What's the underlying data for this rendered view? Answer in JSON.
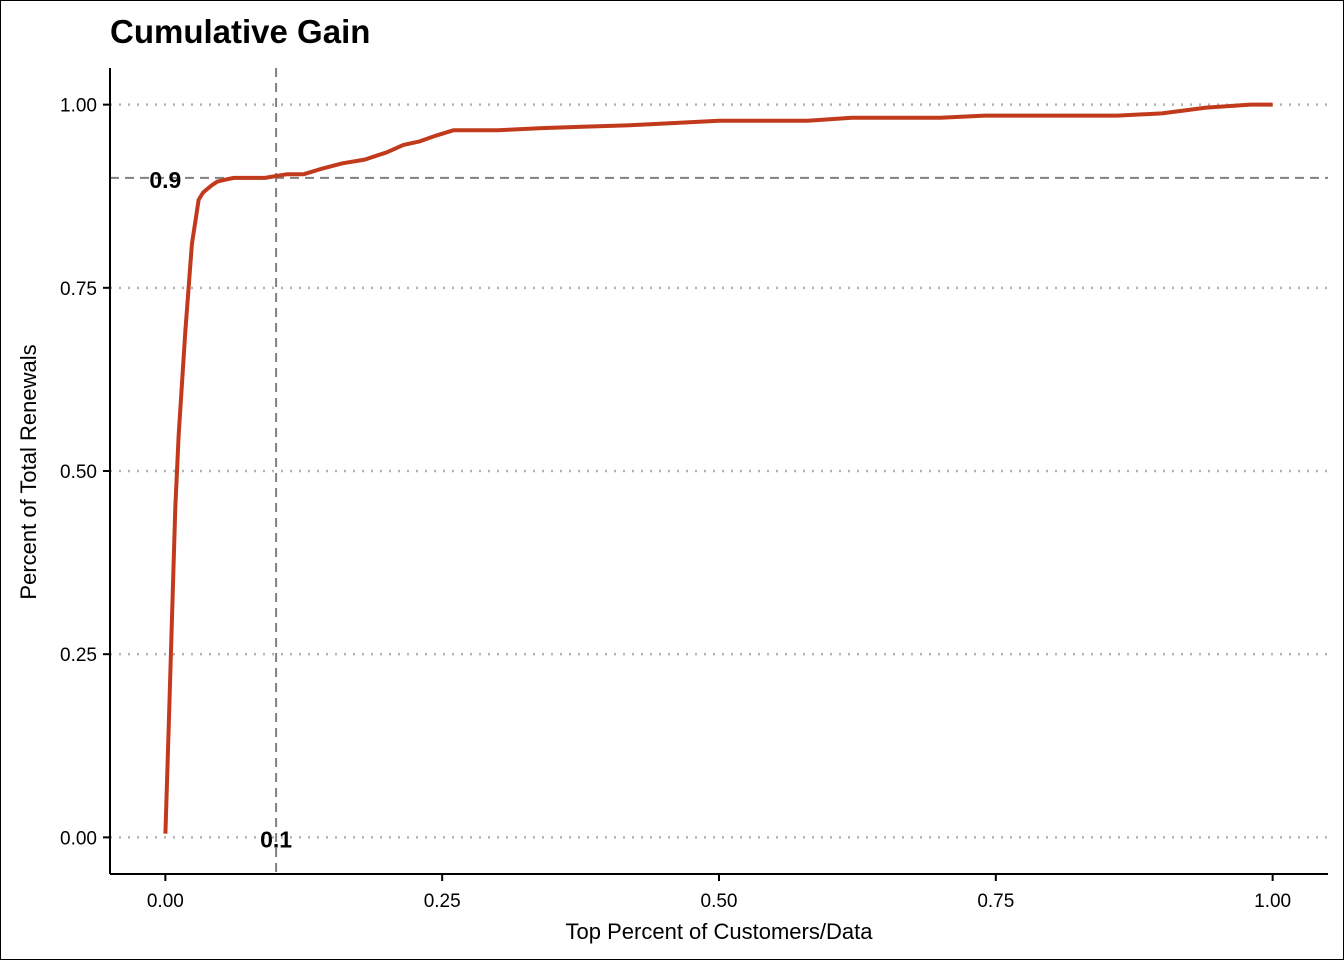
{
  "chart_data": {
    "type": "line",
    "title": "Cumulative Gain",
    "xlabel": "Top Percent of Customers/Data",
    "ylabel": "Percent of Total Renewals",
    "xlim": [
      -0.05,
      1.05
    ],
    "ylim": [
      -0.05,
      1.05
    ],
    "x_ticks": [
      "0.00",
      "0.25",
      "0.50",
      "0.75",
      "1.00"
    ],
    "y_ticks": [
      "0.00",
      "0.25",
      "0.50",
      "0.75",
      "1.00"
    ],
    "grid": "horizontal dotted",
    "colors": {
      "line": "#c13a1b",
      "reference": "#808080",
      "grid": "#b3b3b3"
    },
    "series": [
      {
        "x": [
          0.0,
          0.003,
          0.006,
          0.009,
          0.012,
          0.015,
          0.018,
          0.021,
          0.024,
          0.027,
          0.03,
          0.034,
          0.038,
          0.042,
          0.047,
          0.055,
          0.062,
          0.075,
          0.09,
          0.11,
          0.125,
          0.14,
          0.16,
          0.18,
          0.2,
          0.215,
          0.23,
          0.245,
          0.26,
          0.3,
          0.34,
          0.38,
          0.42,
          0.46,
          0.5,
          0.54,
          0.58,
          0.62,
          0.66,
          0.7,
          0.74,
          0.78,
          0.82,
          0.86,
          0.9,
          0.92,
          0.94,
          0.96,
          0.98,
          1.0
        ],
        "y": [
          0.005,
          0.15,
          0.3,
          0.45,
          0.55,
          0.62,
          0.69,
          0.75,
          0.81,
          0.84,
          0.87,
          0.88,
          0.885,
          0.89,
          0.895,
          0.898,
          0.9,
          0.9,
          0.9,
          0.905,
          0.905,
          0.912,
          0.92,
          0.925,
          0.935,
          0.945,
          0.95,
          0.958,
          0.965,
          0.965,
          0.968,
          0.97,
          0.972,
          0.975,
          0.978,
          0.978,
          0.978,
          0.982,
          0.982,
          0.982,
          0.985,
          0.985,
          0.985,
          0.985,
          0.988,
          0.992,
          0.996,
          0.998,
          1.0,
          1.0
        ]
      }
    ],
    "reference_lines": {
      "vertical_x": 0.1,
      "horizontal_y": 0.9
    },
    "annotations": [
      {
        "text": "0.9",
        "x": 0.0,
        "y": 0.9
      },
      {
        "text": "0.1",
        "x": 0.1,
        "y": 0.0
      }
    ]
  }
}
